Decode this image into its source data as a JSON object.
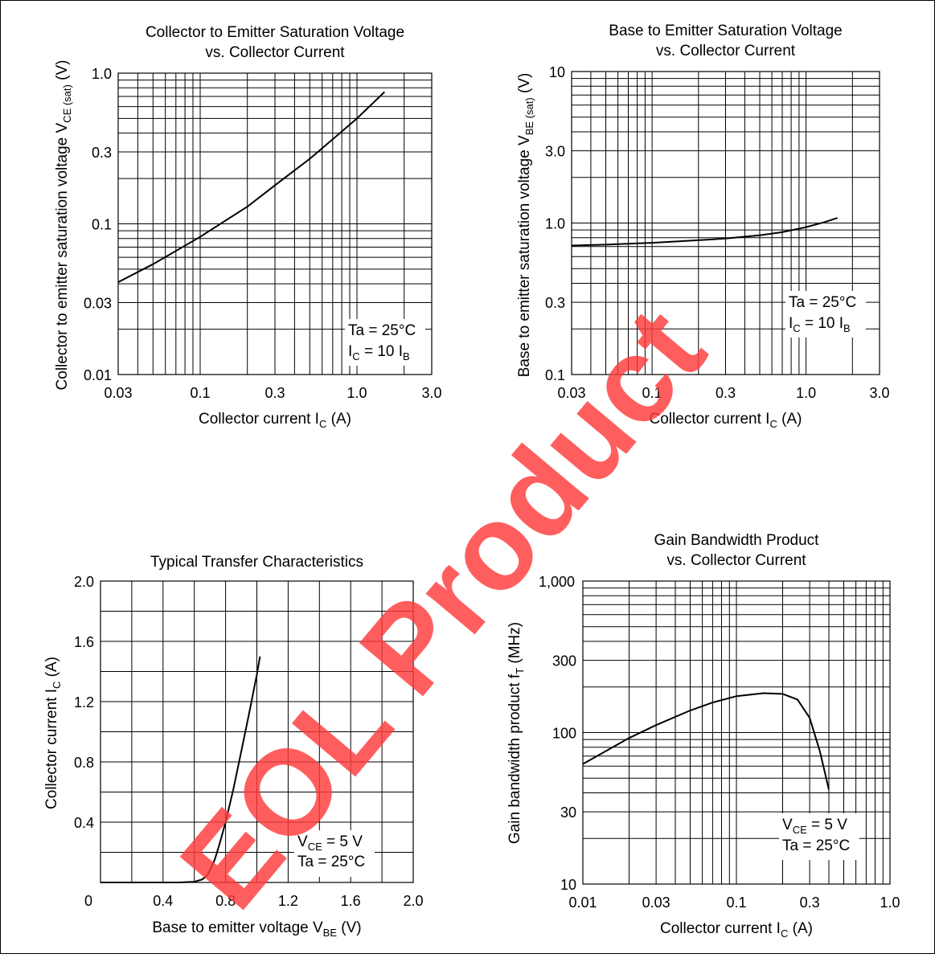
{
  "watermark": "EOL Product",
  "chart_data": [
    {
      "type": "line",
      "title_line1": "Collector to Emitter Saturation Voltage",
      "title_line2": "vs. Collector Current",
      "xlabel": "Collector current",
      "x_symbol": "I",
      "x_sub": "C",
      "x_unit": "(A)",
      "ylabel": "Collector to emitter saturation voltage",
      "y_symbol": "V",
      "y_sub": "CE (sat)",
      "y_unit": "(V)",
      "x_scale": "log",
      "y_scale": "log",
      "xlim": [
        0.03,
        3.0
      ],
      "ylim": [
        0.01,
        1.0
      ],
      "x_ticks": [
        {
          "v": 0.03,
          "label": "0.03"
        },
        {
          "v": 0.1,
          "label": "0.1"
        },
        {
          "v": 0.3,
          "label": "0.3"
        },
        {
          "v": 1.0,
          "label": "1.0"
        },
        {
          "v": 3.0,
          "label": "3.0"
        }
      ],
      "y_ticks": [
        {
          "v": 0.01,
          "label": "0.01"
        },
        {
          "v": 0.03,
          "label": "0.03"
        },
        {
          "v": 0.1,
          "label": "0.1"
        },
        {
          "v": 0.3,
          "label": "0.3"
        },
        {
          "v": 1.0,
          "label": "1.0"
        }
      ],
      "annotation": [
        {
          "text": "Ta = 25°C"
        },
        {
          "main": "I",
          "sub": "C",
          "rest": " = 10 I",
          "sub2": "B"
        }
      ],
      "series": [
        {
          "x": [
            0.03,
            0.05,
            0.1,
            0.2,
            0.3,
            0.5,
            0.8,
            1.0,
            1.5
          ],
          "y": [
            0.041,
            0.054,
            0.082,
            0.13,
            0.18,
            0.27,
            0.41,
            0.5,
            0.75
          ]
        }
      ]
    },
    {
      "type": "line",
      "title_line1": "Base to Emitter Saturation Voltage",
      "title_line2": "vs. Collector Current",
      "xlabel": "Collector current",
      "x_symbol": "I",
      "x_sub": "C",
      "x_unit": "(A)",
      "ylabel": "Base to emitter saturation voltage",
      "y_symbol": "V",
      "y_sub": "BE (sat)",
      "y_unit": "(V)",
      "x_scale": "log",
      "y_scale": "log",
      "xlim": [
        0.03,
        3.0
      ],
      "ylim": [
        0.1,
        10.0
      ],
      "x_ticks": [
        {
          "v": 0.03,
          "label": "0.03"
        },
        {
          "v": 0.1,
          "label": "0.1"
        },
        {
          "v": 0.3,
          "label": "0.3"
        },
        {
          "v": 1.0,
          "label": "1.0"
        },
        {
          "v": 3.0,
          "label": "3.0"
        }
      ],
      "y_ticks": [
        {
          "v": 0.1,
          "label": "0.1"
        },
        {
          "v": 0.3,
          "label": "0.3"
        },
        {
          "v": 1.0,
          "label": "1.0"
        },
        {
          "v": 3.0,
          "label": "3.0"
        },
        {
          "v": 10.0,
          "label": "10"
        }
      ],
      "annotation": [
        {
          "text": "Ta = 25°C"
        },
        {
          "main": "I",
          "sub": "C",
          "rest": " = 10 I",
          "sub2": "B"
        }
      ],
      "series": [
        {
          "x": [
            0.03,
            0.05,
            0.1,
            0.2,
            0.3,
            0.5,
            0.7,
            1.0,
            1.3,
            1.6
          ],
          "y": [
            0.71,
            0.72,
            0.74,
            0.77,
            0.79,
            0.83,
            0.87,
            0.94,
            1.01,
            1.08
          ]
        }
      ]
    },
    {
      "type": "line",
      "title_line1": "Typical Transfer Characteristics",
      "title_line2": "",
      "xlabel": "Base to emitter voltage",
      "x_symbol": "V",
      "x_sub": "BE",
      "x_unit": "(V)",
      "ylabel": "Collector current",
      "y_symbol": "I",
      "y_sub": "C",
      "y_unit": "(A)",
      "x_scale": "linear",
      "y_scale": "linear",
      "xlim": [
        0,
        2.0
      ],
      "ylim": [
        0,
        2.0
      ],
      "x_ticks": [
        {
          "v": 0,
          "label": "0"
        },
        {
          "v": 0.4,
          "label": "0.4"
        },
        {
          "v": 0.8,
          "label": "0.8"
        },
        {
          "v": 1.2,
          "label": "1.2"
        },
        {
          "v": 1.6,
          "label": "1.6"
        },
        {
          "v": 2.0,
          "label": "2.0"
        }
      ],
      "y_ticks": [
        {
          "v": 0.4,
          "label": "0.4"
        },
        {
          "v": 0.8,
          "label": "0.8"
        },
        {
          "v": 1.2,
          "label": "1.2"
        },
        {
          "v": 1.6,
          "label": "1.6"
        },
        {
          "v": 2.0,
          "label": "2.0"
        }
      ],
      "annotation": [
        {
          "main": "V",
          "sub": "CE",
          "rest": " = 5 V",
          "sub2": ""
        },
        {
          "text": "Ta = 25°C"
        }
      ],
      "series": [
        {
          "x": [
            0,
            0.5,
            0.6,
            0.65,
            0.68,
            0.7,
            0.73,
            0.76,
            0.8,
            0.85,
            0.9,
            0.95,
            1.0,
            1.02
          ],
          "y": [
            0,
            0,
            0.005,
            0.02,
            0.045,
            0.08,
            0.15,
            0.25,
            0.4,
            0.62,
            0.87,
            1.12,
            1.38,
            1.5
          ]
        }
      ]
    },
    {
      "type": "line",
      "title_line1": "Gain Bandwidth Product",
      "title_line2": "vs. Collector Current",
      "xlabel": "Collector current",
      "x_symbol": "I",
      "x_sub": "C",
      "x_unit": "(A)",
      "ylabel": "Gain bandwidth product",
      "y_symbol": "f",
      "y_sub": "T",
      "y_unit": "(MHz)",
      "x_scale": "log",
      "y_scale": "log",
      "xlim": [
        0.01,
        1.0
      ],
      "ylim": [
        10,
        1000
      ],
      "x_ticks": [
        {
          "v": 0.01,
          "label": "0.01"
        },
        {
          "v": 0.03,
          "label": "0.03"
        },
        {
          "v": 0.1,
          "label": "0.1"
        },
        {
          "v": 0.3,
          "label": "0.3"
        },
        {
          "v": 1.0,
          "label": "1.0"
        }
      ],
      "y_ticks": [
        {
          "v": 10,
          "label": "10"
        },
        {
          "v": 30,
          "label": "30"
        },
        {
          "v": 100,
          "label": "100"
        },
        {
          "v": 300,
          "label": "300"
        },
        {
          "v": 1000,
          "label": "1,000"
        }
      ],
      "annotation": [
        {
          "main": "V",
          "sub": "CE",
          "rest": " = 5 V",
          "sub2": ""
        },
        {
          "text": "Ta = 25°C"
        }
      ],
      "series": [
        {
          "x": [
            0.01,
            0.02,
            0.03,
            0.05,
            0.07,
            0.1,
            0.15,
            0.2,
            0.25,
            0.3,
            0.35,
            0.4
          ],
          "y": [
            62,
            92,
            112,
            140,
            158,
            174,
            182,
            180,
            165,
            125,
            75,
            42
          ]
        }
      ]
    }
  ]
}
